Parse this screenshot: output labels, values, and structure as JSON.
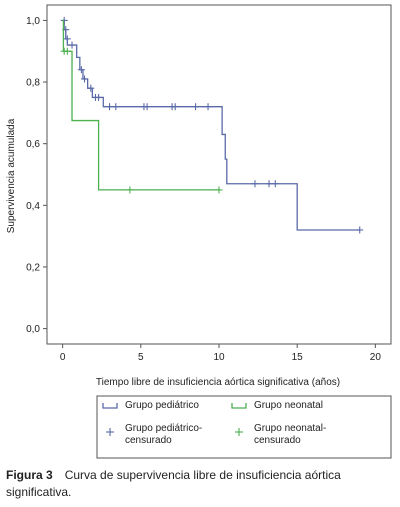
{
  "chart_data": {
    "type": "line",
    "subtype": "kaplan-meier step",
    "xlabel": "Tiempo libre de insuficiencia aórtica significativa (años)",
    "ylabel": "Supervivencia acumulada",
    "xlim": [
      -1,
      21
    ],
    "ylim": [
      -0.05,
      1.05
    ],
    "x_ticks": [
      0,
      5,
      10,
      15,
      20
    ],
    "x_tick_labels": [
      "0",
      "5",
      "10",
      "15",
      "20"
    ],
    "y_ticks": [
      0.0,
      0.2,
      0.4,
      0.6,
      0.8,
      1.0
    ],
    "y_tick_labels": [
      "0,0",
      "0,2",
      "0,4",
      "0,6",
      "0,8",
      "1,0"
    ],
    "grid": false,
    "legend_position": "bottom",
    "series": [
      {
        "name": "Grupo pediátrico",
        "color": "#5a6aa8",
        "steps": [
          [
            0,
            1.0
          ],
          [
            0.1,
            0.97
          ],
          [
            0.2,
            0.94
          ],
          [
            0.3,
            0.92
          ],
          [
            0.9,
            0.88
          ],
          [
            1.1,
            0.84
          ],
          [
            1.3,
            0.81
          ],
          [
            1.6,
            0.78
          ],
          [
            1.9,
            0.75
          ],
          [
            2.6,
            0.72
          ],
          [
            10.2,
            0.63
          ],
          [
            10.4,
            0.55
          ],
          [
            10.5,
            0.47
          ],
          [
            15.0,
            0.32
          ],
          [
            19.0,
            0.32
          ]
        ],
        "censored": [
          [
            0.1,
            1.0
          ],
          [
            0.2,
            0.97
          ],
          [
            0.3,
            0.94
          ],
          [
            0.6,
            0.92
          ],
          [
            1.2,
            0.84
          ],
          [
            1.4,
            0.81
          ],
          [
            1.8,
            0.78
          ],
          [
            2.1,
            0.75
          ],
          [
            2.3,
            0.75
          ],
          [
            3.0,
            0.72
          ],
          [
            3.4,
            0.72
          ],
          [
            5.2,
            0.72
          ],
          [
            5.4,
            0.72
          ],
          [
            7.0,
            0.72
          ],
          [
            7.2,
            0.72
          ],
          [
            8.5,
            0.72
          ],
          [
            9.3,
            0.72
          ],
          [
            12.3,
            0.47
          ],
          [
            13.2,
            0.47
          ],
          [
            13.6,
            0.47
          ],
          [
            19.0,
            0.32
          ]
        ]
      },
      {
        "name": "Grupo neonatal",
        "color": "#4caf50",
        "steps": [
          [
            0,
            1.0
          ],
          [
            0.05,
            0.9
          ],
          [
            0.6,
            0.675
          ],
          [
            2.3,
            0.45
          ],
          [
            10.0,
            0.45
          ]
        ],
        "censored": [
          [
            0.1,
            0.9
          ],
          [
            0.3,
            0.9
          ],
          [
            4.3,
            0.45
          ],
          [
            10.0,
            0.45
          ]
        ]
      }
    ]
  },
  "legend": {
    "items": [
      {
        "label_lines": [
          "Grupo pediátrico"
        ],
        "kind": "line",
        "series": 0
      },
      {
        "label_lines": [
          "Grupo neonatal"
        ],
        "kind": "line",
        "series": 1
      },
      {
        "label_lines": [
          "Grupo pediátrico-",
          "censurado"
        ],
        "kind": "cross",
        "series": 0
      },
      {
        "label_lines": [
          "Grupo neonatal-",
          "censurado"
        ],
        "kind": "cross",
        "series": 1
      }
    ]
  },
  "caption": {
    "label": "Figura 3",
    "text": "Curva de supervivencia libre de insuficiencia aórtica significativa."
  }
}
